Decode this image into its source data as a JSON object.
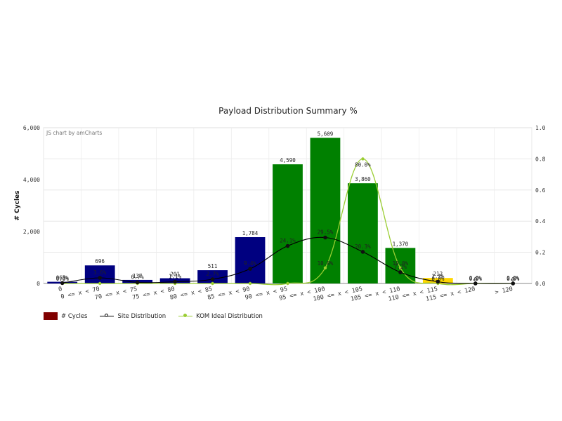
{
  "chart_data": {
    "type": "bar",
    "title": "Payload Distribution Summary %",
    "credit": "JS chart by amCharts",
    "ylabel": "# Cycles",
    "ylabel_right": "",
    "ylim": [
      0,
      6000
    ],
    "ylim_right": [
      0,
      1
    ],
    "y_ticks": [
      "0",
      "2,000",
      "4,000",
      "6,000"
    ],
    "y_ticks_right": [
      "0.0",
      "0.2",
      "0.4",
      "0.6",
      "0.8",
      "1.0"
    ],
    "grid": true,
    "legend_position": "bottom-left",
    "categories": [
      "0",
      "0 <= x < 70",
      "70 <= x < 75",
      "75 <= x < 80",
      "80 <= x < 85",
      "85 <= x < 90",
      "90 <= x < 95",
      "95 <= x < 100",
      "100 <= x < 105",
      "105 <= x < 110",
      "110 <= x < 115",
      "115 <= x < 120",
      "> 120"
    ],
    "bars": {
      "name": "# Cycles",
      "values": [
        65,
        696,
        137,
        201,
        511,
        1784,
        4590,
        5609,
        3860,
        1370,
        212,
        0,
        0
      ],
      "labels": [
        "65",
        "696",
        "137",
        "201",
        "511",
        "1,784",
        "4,590",
        "5,609",
        "3,860",
        "1,370",
        "212",
        "0",
        "0"
      ],
      "colors": [
        "#000080",
        "#000080",
        "#000080",
        "#000080",
        "#000080",
        "#000080",
        "#008000",
        "#008000",
        "#008000",
        "#008000",
        "#FFD700",
        "#FFD700",
        "#FFD700"
      ],
      "legend_color": "#800000"
    },
    "series": [
      {
        "name": "Site Distribution",
        "color": "#000000",
        "values": [
          0.003,
          0.036,
          0.007,
          0.011,
          0.027,
          0.094,
          0.241,
          0.295,
          0.203,
          0.072,
          0.011,
          0.0,
          0.0
        ],
        "labels": [
          "0.3%",
          "3.6%",
          "0.7%",
          "1.1%",
          "2.7%",
          "9.4%",
          "24.1%",
          "29.5%",
          "20.3%",
          "7.2%",
          "1.1%",
          "0.0%",
          "0.0%"
        ]
      },
      {
        "name": "KOM Ideal Distribution",
        "color": "#9ACD32",
        "values": [
          0,
          0,
          0,
          0,
          0,
          0,
          0,
          0.1,
          0.8,
          0.1,
          0,
          0,
          0
        ],
        "labels": [
          "0.0%",
          "",
          "",
          "",
          "",
          "",
          "",
          "10.0%",
          "80.0%",
          "10.0%",
          "0.0%",
          "0.0%",
          "0.0%"
        ]
      }
    ]
  }
}
